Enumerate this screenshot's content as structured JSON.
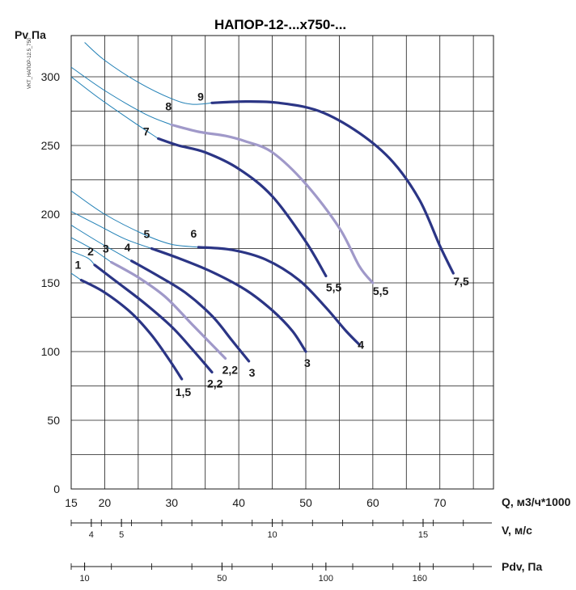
{
  "chart_data": {
    "type": "line",
    "title": "НАПОР-12-...х750-...",
    "side_id": "VKT_НАПОР-12.5_750",
    "xlabel": "Q, м3/ч*1000",
    "ylabel": "Pv  Па",
    "xlim": [
      15,
      78
    ],
    "ylim": [
      0,
      330
    ],
    "x_ticks": [
      15,
      20,
      30,
      40,
      50,
      60,
      70
    ],
    "y_ticks": [
      0,
      50,
      100,
      150,
      200,
      250,
      300
    ],
    "x_grid": [
      15,
      20,
      25,
      30,
      35,
      40,
      45,
      50,
      55,
      60,
      65,
      70,
      75
    ],
    "y_grid": [
      0,
      25,
      50,
      75,
      100,
      125,
      150,
      175,
      200,
      225,
      250,
      275,
      300
    ],
    "grid": true,
    "colors": {
      "dark": "#2b3585",
      "light": "#a099c9",
      "thin": "#1f7fb5"
    },
    "series": [
      {
        "label": "1",
        "end_label": "1,5",
        "style": "dark",
        "thin_points": [
          [
            15,
            157
          ],
          [
            16.5,
            152
          ]
        ],
        "points": [
          [
            16.5,
            152
          ],
          [
            20,
            143
          ],
          [
            24,
            128
          ],
          [
            27,
            112
          ],
          [
            29.5,
            95
          ],
          [
            31.5,
            80
          ]
        ]
      },
      {
        "label": "2",
        "end_label": "2,2",
        "style": "dark",
        "thin_points": [
          [
            15,
            173
          ],
          [
            17.5,
            168
          ],
          [
            18.5,
            163
          ]
        ],
        "points": [
          [
            18.5,
            163
          ],
          [
            22,
            150
          ],
          [
            26,
            135
          ],
          [
            30,
            118
          ],
          [
            33,
            102
          ],
          [
            36,
            85
          ]
        ]
      },
      {
        "label": "3",
        "end_label": "2,2",
        "style": "light",
        "thin_points": [
          [
            15,
            183
          ],
          [
            18,
            175
          ],
          [
            21,
            165
          ]
        ],
        "points": [
          [
            21,
            165
          ],
          [
            25,
            154
          ],
          [
            29,
            140
          ],
          [
            33,
            120
          ],
          [
            36,
            105
          ],
          [
            38,
            95
          ]
        ]
      },
      {
        "label": "4",
        "end_label": "3",
        "style": "dark",
        "thin_points": [
          [
            15,
            192
          ],
          [
            19,
            180
          ],
          [
            24,
            166
          ]
        ],
        "points": [
          [
            24,
            166
          ],
          [
            28,
            155
          ],
          [
            32,
            143
          ],
          [
            36,
            126
          ],
          [
            39,
            108
          ],
          [
            41.5,
            93
          ]
        ]
      },
      {
        "label": "5",
        "end_label": "3",
        "style": "dark",
        "thin_points": [
          [
            15,
            202
          ],
          [
            19,
            192
          ],
          [
            23,
            182
          ],
          [
            27,
            175
          ]
        ],
        "points": [
          [
            27,
            175
          ],
          [
            31,
            168
          ],
          [
            36,
            158
          ],
          [
            41,
            145
          ],
          [
            45,
            130
          ],
          [
            48,
            115
          ],
          [
            50,
            100
          ]
        ]
      },
      {
        "label": "6",
        "end_label": "4",
        "style": "dark",
        "thin_points": [
          [
            15,
            217
          ],
          [
            20,
            200
          ],
          [
            26,
            185
          ],
          [
            30,
            178
          ],
          [
            34,
            176
          ]
        ],
        "points": [
          [
            34,
            176
          ],
          [
            39,
            174
          ],
          [
            44,
            167
          ],
          [
            49,
            152
          ],
          [
            53,
            132
          ],
          [
            56,
            115
          ],
          [
            58,
            105
          ]
        ]
      },
      {
        "label": "7",
        "end_label": "5,5",
        "style": "dark",
        "thin_points": [
          [
            15,
            300
          ],
          [
            19,
            285
          ],
          [
            24,
            268
          ],
          [
            28,
            255
          ]
        ],
        "points": [
          [
            28,
            255
          ],
          [
            31,
            250
          ],
          [
            35,
            245
          ],
          [
            40,
            233
          ],
          [
            45,
            213
          ],
          [
            50,
            180
          ],
          [
            53,
            155
          ]
        ]
      },
      {
        "label": "8",
        "end_label": "5,5",
        "style": "light",
        "thin_points": [
          [
            15,
            307
          ],
          [
            20,
            290
          ],
          [
            26,
            273
          ],
          [
            30,
            265
          ]
        ],
        "points": [
          [
            30,
            265
          ],
          [
            34,
            260
          ],
          [
            38,
            257
          ],
          [
            41,
            253
          ],
          [
            45,
            245
          ],
          [
            50,
            222
          ],
          [
            55,
            190
          ],
          [
            58,
            162
          ],
          [
            60,
            150
          ]
        ]
      },
      {
        "label": "9",
        "end_label": "7,5",
        "style": "dark",
        "thin_points": [
          [
            17,
            325
          ],
          [
            20,
            312
          ],
          [
            25,
            296
          ],
          [
            30,
            284
          ],
          [
            33,
            280
          ],
          [
            36,
            281
          ]
        ],
        "points": [
          [
            36,
            281
          ],
          [
            41,
            282
          ],
          [
            46,
            281
          ],
          [
            52,
            275
          ],
          [
            58,
            259
          ],
          [
            63,
            238
          ],
          [
            67,
            210
          ],
          [
            70,
            177
          ],
          [
            72,
            157
          ]
        ]
      }
    ]
  },
  "label_offsets": {
    "1": [
      -4,
      -14
    ],
    "2": [
      -5,
      -12
    ],
    "3": [
      -7,
      -12
    ],
    "4": [
      -5,
      -12
    ],
    "5": [
      -6,
      -13
    ],
    "6": [
      -6,
      -12
    ],
    "7": [
      -15,
      -4
    ],
    "8": [
      -4,
      -18
    ],
    "9": [
      -14,
      -3
    ]
  },
  "end_label_offsets": {
    "1": [
      -8,
      16
    ],
    "2": [
      -6,
      14
    ],
    "3": [
      -4,
      14
    ],
    "4": [
      0,
      14
    ],
    "5": [
      -2,
      14
    ],
    "6": [
      -2,
      0
    ],
    "7": [
      0,
      14
    ],
    "8": [
      0,
      10
    ],
    "9": [
      0,
      10
    ]
  },
  "velocity_axis": {
    "label": "V, м/с",
    "ticks": [
      {
        "v": "4",
        "q": 18.0
      },
      {
        "v": "5",
        "q": 22.5
      },
      {
        "v": "10",
        "q": 45.0
      },
      {
        "v": "15",
        "q": 67.5
      }
    ]
  },
  "dynamic_pressure_axis": {
    "label": "Pdv, Па",
    "ticks": [
      {
        "v": "10",
        "q": 17.0
      },
      {
        "v": "50",
        "q": 37.5
      },
      {
        "v": "100",
        "q": 53.0
      },
      {
        "v": "160",
        "q": 67.0
      }
    ]
  }
}
